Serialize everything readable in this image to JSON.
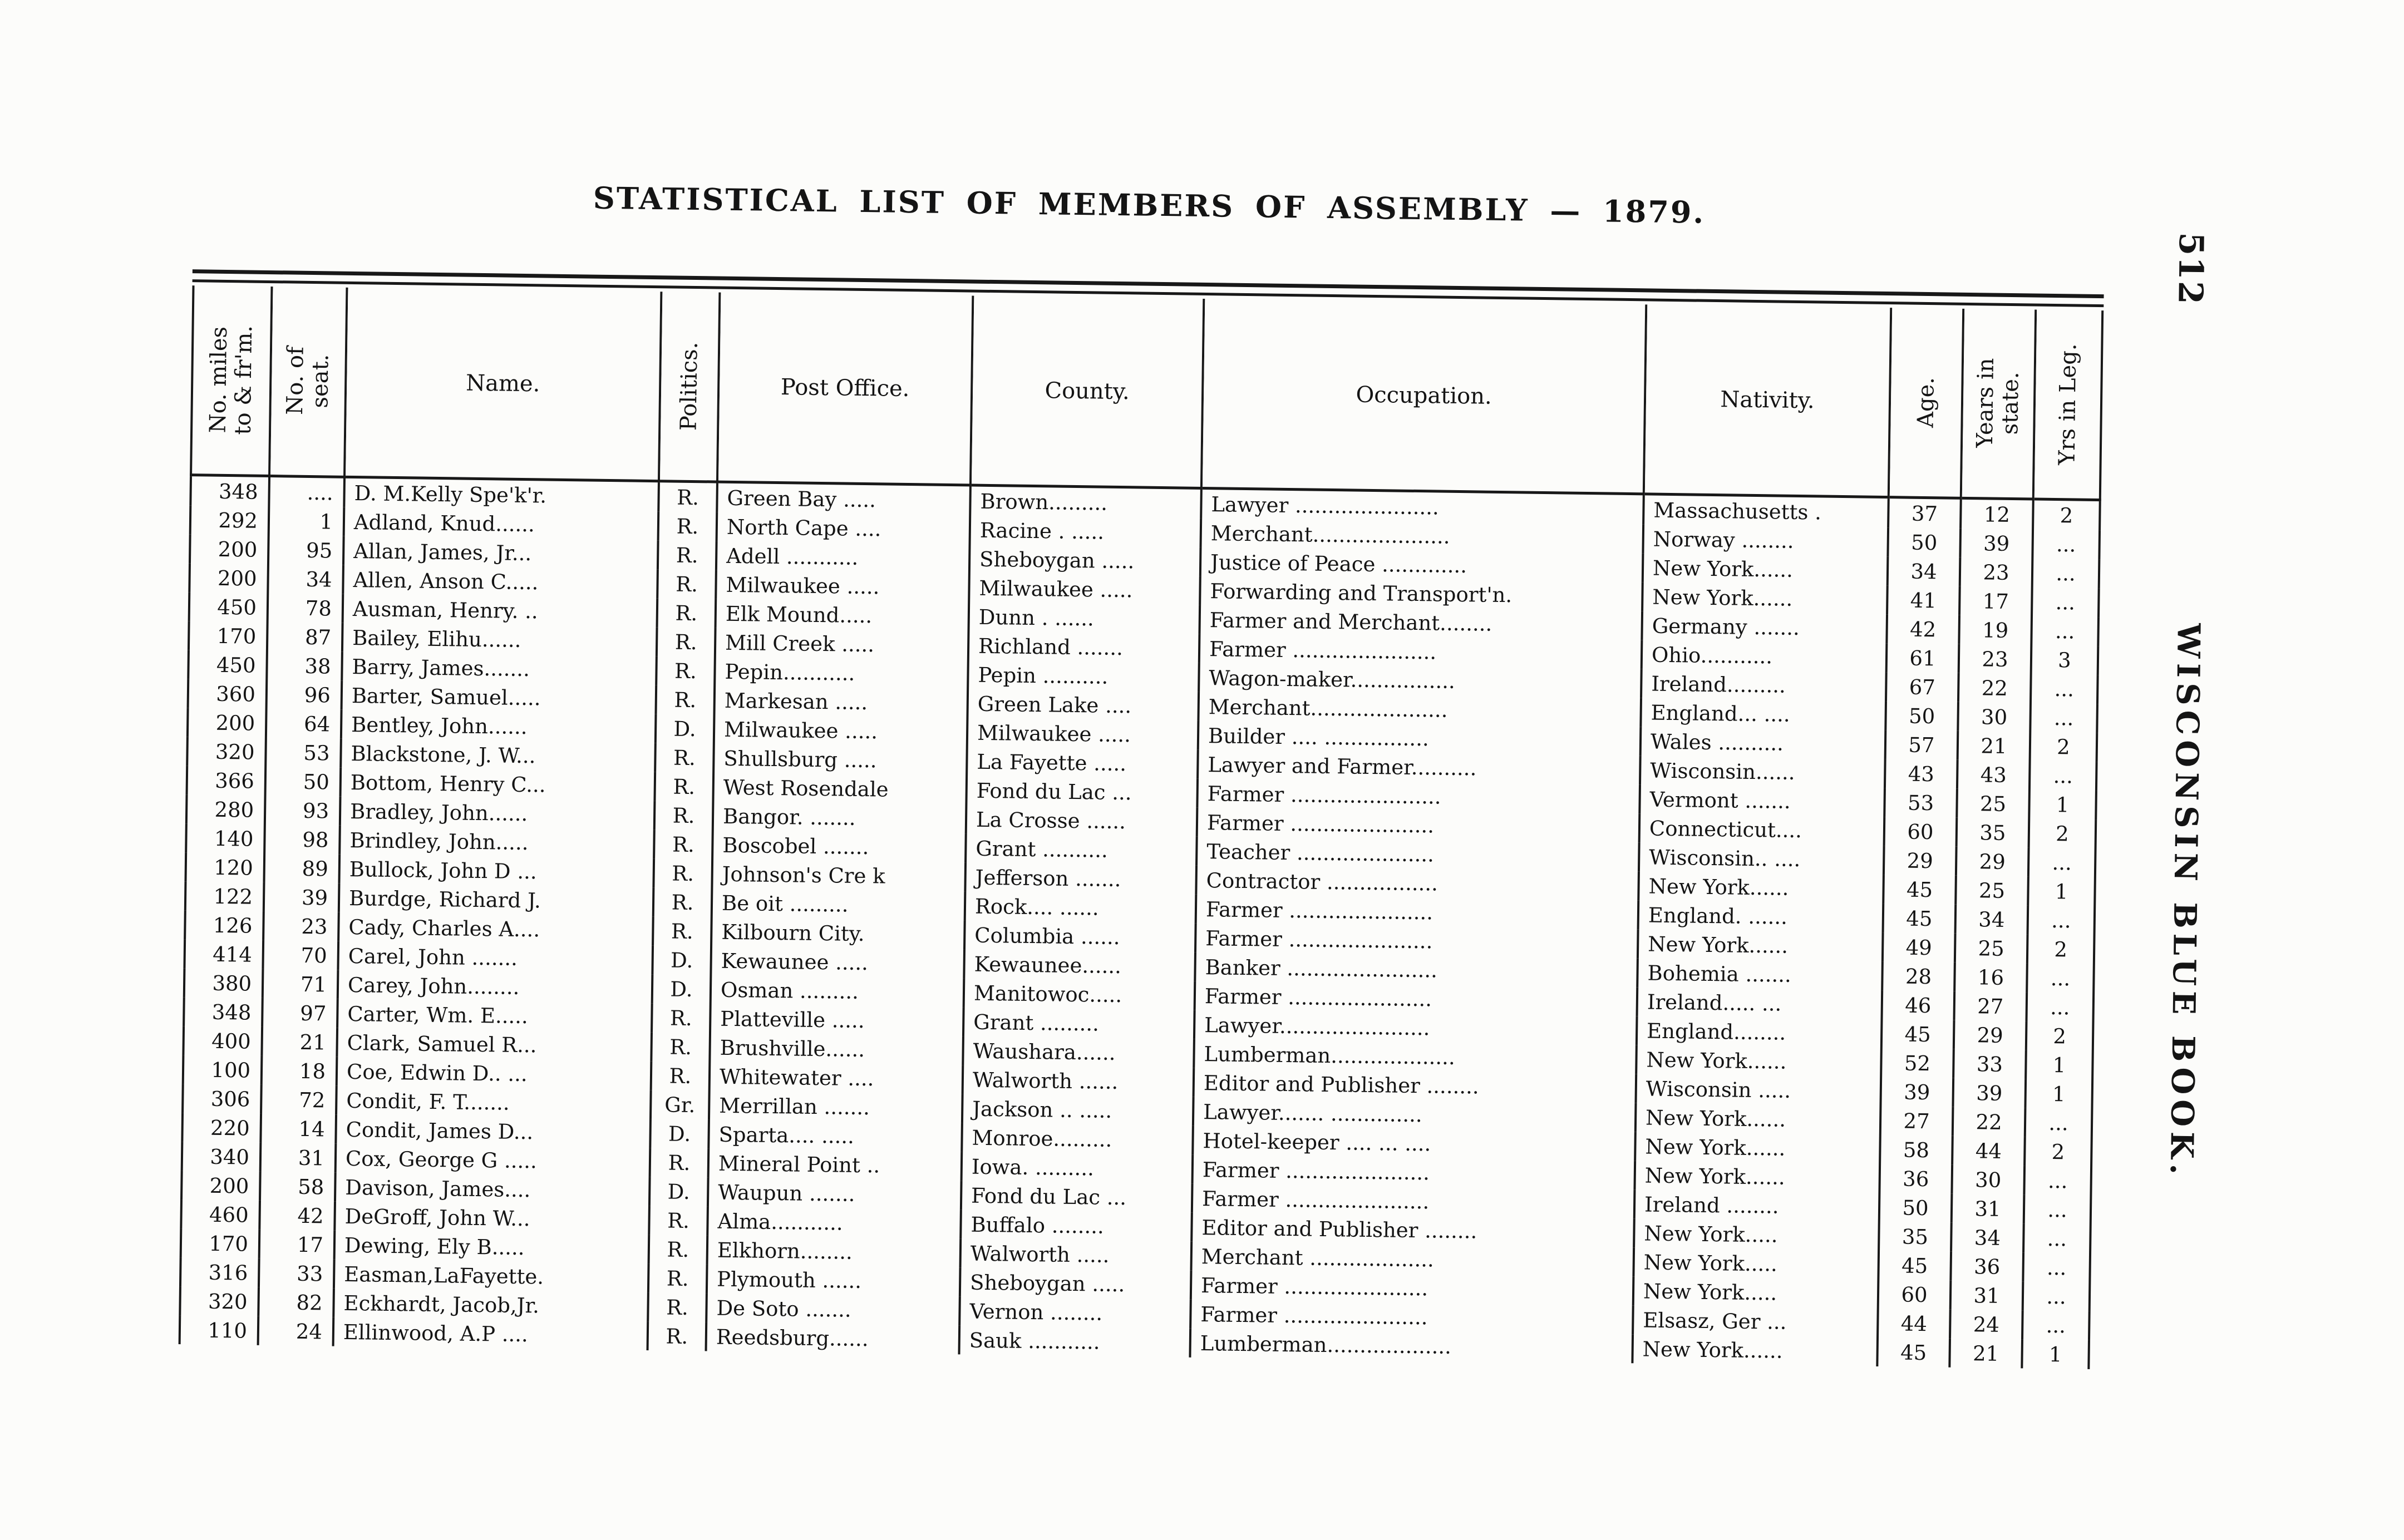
{
  "page": {
    "number": "512",
    "margin_title": "WISCONSIN BLUE BOOK.",
    "title": "STATISTICAL LIST OF MEMBERS OF ASSEMBLY — 1879."
  },
  "table": {
    "headers": {
      "miles_line1": "No. miles",
      "miles_line2": "to & fr'm.",
      "seat_line1": "No. of",
      "seat_line2": "seat.",
      "name": "Name.",
      "politics": "Politics.",
      "post_office": "Post Office.",
      "county": "County.",
      "occupation": "Occupation.",
      "nativity": "Nativity.",
      "age": "Age.",
      "years_line1": "Years in",
      "years_line2": "state.",
      "years_leg": "Yrs in Leg."
    },
    "rows": [
      {
        "miles": "348",
        "seat": "....",
        "name": "D. M.Kelly Spe'k'r.",
        "politics": "R.",
        "post_office": "Green Bay .....",
        "county": "Brown.........",
        "occupation": "Lawyer ......................",
        "nativity": "Massachusetts .",
        "age": "37",
        "years_state": "12",
        "years_leg": "2"
      },
      {
        "miles": "292",
        "seat": "1",
        "name": "Adland, Knud......",
        "politics": "R.",
        "post_office": "North Cape ....",
        "county": "Racine .  .....",
        "occupation": "Merchant.....................",
        "nativity": "Norway ........",
        "age": "50",
        "years_state": "39",
        "years_leg": "..."
      },
      {
        "miles": "200",
        "seat": "95",
        "name": "Allan, James, Jr...",
        "politics": "R.",
        "post_office": "Adell ...........",
        "county": "Sheboygan .....",
        "occupation": "Justice of Peace .............",
        "nativity": "New York......",
        "age": "34",
        "years_state": "23",
        "years_leg": "..."
      },
      {
        "miles": "200",
        "seat": "34",
        "name": "Allen, Anson C.....",
        "politics": "R.",
        "post_office": "Milwaukee .....",
        "county": "Milwaukee .....",
        "occupation": "Forwarding and Transport'n.",
        "nativity": "New York......",
        "age": "41",
        "years_state": "17",
        "years_leg": "..."
      },
      {
        "miles": "450",
        "seat": "78",
        "name": "Ausman, Henry. ..",
        "politics": "R.",
        "post_office": "Elk Mound.....",
        "county": "Dunn .  ......",
        "occupation": "Farmer and Merchant........",
        "nativity": "Germany .......",
        "age": "42",
        "years_state": "19",
        "years_leg": "..."
      },
      {
        "miles": "170",
        "seat": "87",
        "name": "Bailey, Elihu......",
        "politics": "R.",
        "post_office": "Mill Creek .....",
        "county": "Richland .......",
        "occupation": "Farmer ......................",
        "nativity": "Ohio...........",
        "age": "61",
        "years_state": "23",
        "years_leg": "3"
      },
      {
        "miles": "450",
        "seat": "38",
        "name": "Barry, James.......",
        "politics": "R.",
        "post_office": "Pepin...........",
        "county": "Pepin ..........",
        "occupation": "Wagon-maker................",
        "nativity": "Ireland.........",
        "age": "67",
        "years_state": "22",
        "years_leg": "..."
      },
      {
        "miles": "360",
        "seat": "96",
        "name": "Barter, Samuel.....",
        "politics": "R.",
        "post_office": "Markesan .....",
        "county": "Green Lake ....",
        "occupation": "Merchant.....................",
        "nativity": "England... ....",
        "age": "50",
        "years_state": "30",
        "years_leg": "..."
      },
      {
        "miles": "200",
        "seat": "64",
        "name": "Bentley, John......",
        "politics": "D.",
        "post_office": "Milwaukee .....",
        "county": "Milwaukee .....",
        "occupation": "Builder .... ................",
        "nativity": "Wales ..........",
        "age": "57",
        "years_state": "21",
        "years_leg": "2"
      },
      {
        "miles": "320",
        "seat": "53",
        "name": "Blackstone, J. W...",
        "politics": "R.",
        "post_office": "Shullsburg .....",
        "county": "La Fayette .....",
        "occupation": "Lawyer and Farmer..........",
        "nativity": "Wisconsin......",
        "age": "43",
        "years_state": "43",
        "years_leg": "..."
      },
      {
        "miles": "366",
        "seat": "50",
        "name": "Bottom, Henry C...",
        "politics": "R.",
        "post_office": "West Rosendale",
        "county": "Fond du Lac ...",
        "occupation": "Farmer .......................",
        "nativity": "Vermont .......",
        "age": "53",
        "years_state": "25",
        "years_leg": "1"
      },
      {
        "miles": "280",
        "seat": "93",
        "name": "Bradley, John......",
        "politics": "R.",
        "post_office": "Bangor. .......",
        "county": "La Crosse ......",
        "occupation": "Farmer ......................",
        "nativity": "Connecticut....",
        "age": "60",
        "years_state": "35",
        "years_leg": "2"
      },
      {
        "miles": "140",
        "seat": "98",
        "name": "Brindley, John.....",
        "politics": "R.",
        "post_office": "Boscobel .......",
        "county": "Grant ..........",
        "occupation": "Teacher .....................",
        "nativity": "Wisconsin.. ....",
        "age": "29",
        "years_state": "29",
        "years_leg": "..."
      },
      {
        "miles": "120",
        "seat": "89",
        "name": "Bullock, John D ...",
        "politics": "R.",
        "post_office": "Johnson's Cre k",
        "county": "Jefferson .......",
        "occupation": "Contractor .................",
        "nativity": "New York......",
        "age": "45",
        "years_state": "25",
        "years_leg": "1"
      },
      {
        "miles": "122",
        "seat": "39",
        "name": "Burdge, Richard J.",
        "politics": "R.",
        "post_office": "Be oit .........",
        "county": "Rock....  ......",
        "occupation": "Farmer ......................",
        "nativity": "England. ......",
        "age": "45",
        "years_state": "34",
        "years_leg": "..."
      },
      {
        "miles": "126",
        "seat": "23",
        "name": "Cady, Charles A....",
        "politics": "R.",
        "post_office": "Kilbourn City.",
        "county": "Columbia ......",
        "occupation": "Farmer ......................",
        "nativity": "New York......",
        "age": "49",
        "years_state": "25",
        "years_leg": "2"
      },
      {
        "miles": "414",
        "seat": "70",
        "name": "Carel, John .......",
        "politics": "D.",
        "post_office": "Kewaunee .....",
        "county": "Kewaunee......",
        "occupation": "Banker .......................",
        "nativity": "Bohemia .......",
        "age": "28",
        "years_state": "16",
        "years_leg": "..."
      },
      {
        "miles": "380",
        "seat": "71",
        "name": "Carey, John........",
        "politics": "D.",
        "post_office": "Osman .........",
        "county": "Manitowoc.....",
        "occupation": "Farmer ......................",
        "nativity": "Ireland..... ...",
        "age": "46",
        "years_state": "27",
        "years_leg": "..."
      },
      {
        "miles": "348",
        "seat": "97",
        "name": "Carter, Wm. E.....",
        "politics": "R.",
        "post_office": "Platteville .....",
        "county": "Grant .........",
        "occupation": "Lawyer.......................",
        "nativity": "England........",
        "age": "45",
        "years_state": "29",
        "years_leg": "2"
      },
      {
        "miles": "400",
        "seat": "21",
        "name": "Clark, Samuel R...",
        "politics": "R.",
        "post_office": "Brushville......",
        "county": "Waushara......",
        "occupation": "Lumberman...................",
        "nativity": "New York......",
        "age": "52",
        "years_state": "33",
        "years_leg": "1"
      },
      {
        "miles": "100",
        "seat": "18",
        "name": "Coe, Edwin D.. ...",
        "politics": "R.",
        "post_office": "Whitewater ....",
        "county": "Walworth ......",
        "occupation": "Editor and Publisher ........",
        "nativity": "Wisconsin .....",
        "age": "39",
        "years_state": "39",
        "years_leg": "1"
      },
      {
        "miles": "306",
        "seat": "72",
        "name": "Condit, F. T.......",
        "politics": "Gr.",
        "post_office": "Merrillan .......",
        "county": "Jackson ..  .....",
        "occupation": "Lawyer....... ..............",
        "nativity": "New York......",
        "age": "27",
        "years_state": "22",
        "years_leg": "..."
      },
      {
        "miles": "220",
        "seat": "14",
        "name": "Condit, James D...",
        "politics": "D.",
        "post_office": "Sparta.... .....",
        "county": "Monroe.........",
        "occupation": "Hotel-keeper  .... ...   ....",
        "nativity": "New York......",
        "age": "58",
        "years_state": "44",
        "years_leg": "2"
      },
      {
        "miles": "340",
        "seat": "31",
        "name": "Cox, George G .....",
        "politics": "R.",
        "post_office": "Mineral Point ..",
        "county": "Iowa. .........",
        "occupation": "Farmer ......................",
        "nativity": "New York......",
        "age": "36",
        "years_state": "30",
        "years_leg": "..."
      },
      {
        "miles": "200",
        "seat": "58",
        "name": "Davison, James....",
        "politics": "D.",
        "post_office": "Waupun .......",
        "county": "Fond du Lac ...",
        "occupation": "Farmer ......................",
        "nativity": "Ireland ........",
        "age": "50",
        "years_state": "31",
        "years_leg": "..."
      },
      {
        "miles": "460",
        "seat": "42",
        "name": "DeGroff, John W...",
        "politics": "R.",
        "post_office": "Alma...........",
        "county": "Buffalo ........",
        "occupation": "Editor and Publisher ........",
        "nativity": "New York.....",
        "age": "35",
        "years_state": "34",
        "years_leg": "..."
      },
      {
        "miles": "170",
        "seat": "17",
        "name": "Dewing, Ely B.....",
        "politics": "R.",
        "post_office": "Elkhorn........",
        "county": "Walworth .....",
        "occupation": "Merchant ...................",
        "nativity": "New York.....",
        "age": "45",
        "years_state": "36",
        "years_leg": "..."
      },
      {
        "miles": "316",
        "seat": "33",
        "name": "Easman,LaFayette.",
        "politics": "R.",
        "post_office": "Plymouth ......",
        "county": "Sheboygan .....",
        "occupation": "Farmer ......................",
        "nativity": "New York.....",
        "age": "60",
        "years_state": "31",
        "years_leg": "..."
      },
      {
        "miles": "320",
        "seat": "82",
        "name": "Eckhardt, Jacob,Jr.",
        "politics": "R.",
        "post_office": "De Soto  .......",
        "county": "Vernon ........",
        "occupation": "Farmer ......................",
        "nativity": "Elsasz, Ger ...",
        "age": "44",
        "years_state": "24",
        "years_leg": "..."
      },
      {
        "miles": "110",
        "seat": "24",
        "name": "Ellinwood, A.P ....",
        "politics": "R.",
        "post_office": "Reedsburg......",
        "county": "Sauk ...........",
        "occupation": "Lumberman...................",
        "nativity": "New York......",
        "age": "45",
        "years_state": "21",
        "years_leg": "1"
      }
    ]
  }
}
